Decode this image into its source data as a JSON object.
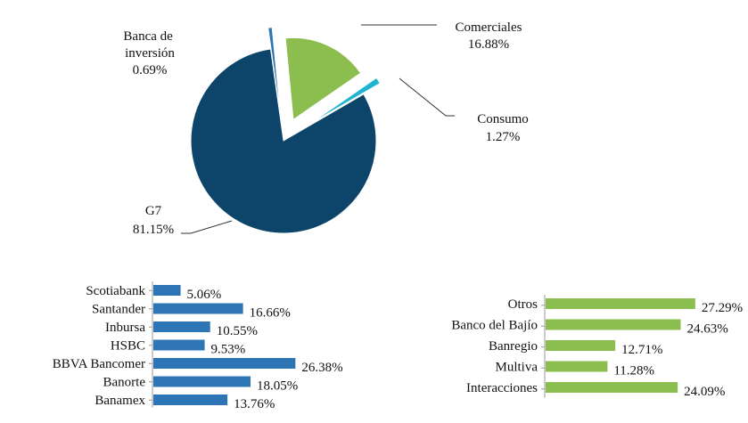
{
  "chart_data": [
    {
      "type": "pie",
      "slices": [
        {
          "name": "G7",
          "value": 81.15,
          "label": "81.15%",
          "color": "#0c4569"
        },
        {
          "name": "Banca de inversión",
          "value": 0.69,
          "label": "0.69%",
          "color": "#2e75b6"
        },
        {
          "name": "Comerciales",
          "value": 16.88,
          "label": "16.88%",
          "color": "#8cbd4f"
        },
        {
          "name": "Consumo",
          "value": 1.27,
          "label": "1.27%",
          "color": "#1fb4cf"
        }
      ]
    },
    {
      "type": "bar",
      "orientation": "horizontal",
      "color": "#2e75b6",
      "categories": [
        "Scotiabank",
        "Santander",
        "Inbursa",
        "HSBC",
        "BBVA Bancomer",
        "Banorte",
        "Banamex"
      ],
      "values": [
        5.06,
        16.66,
        10.55,
        9.53,
        26.38,
        18.05,
        13.76
      ],
      "labels": [
        "5.06%",
        "16.66%",
        "10.55%",
        "9.53%",
        "26.38%",
        "18.05%",
        "13.76%"
      ]
    },
    {
      "type": "bar",
      "orientation": "horizontal",
      "color": "#8cbd4f",
      "categories": [
        "Otros",
        "Banco del Bajío",
        "Banregio",
        "Multiva",
        "Interacciones"
      ],
      "values": [
        27.29,
        24.63,
        12.71,
        11.28,
        24.09
      ],
      "labels": [
        "27.29%",
        "24.63%",
        "12.71%",
        "11.28%",
        "24.09%"
      ]
    }
  ]
}
